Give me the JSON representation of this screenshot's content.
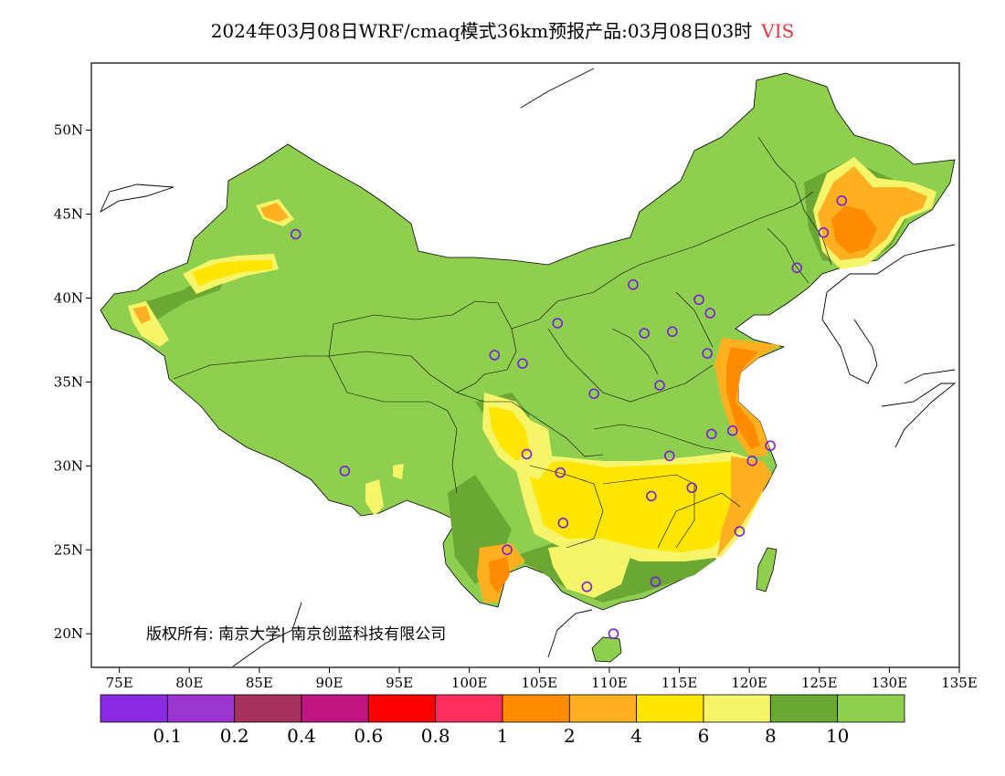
{
  "title": {
    "main": "2024年03月08日WRF/cmaq模式36km预报产品:03月08日03时",
    "variable": "VIS",
    "variable_color": "#e8343c"
  },
  "axes": {
    "lon_min": 73,
    "lon_max": 135,
    "lat_min": 18,
    "lat_max": 54,
    "x_ticks": [
      "75E",
      "80E",
      "85E",
      "90E",
      "95E",
      "100E",
      "105E",
      "110E",
      "115E",
      "120E",
      "125E",
      "130E",
      "135E"
    ],
    "x_tick_values": [
      75,
      80,
      85,
      90,
      95,
      100,
      105,
      110,
      115,
      120,
      125,
      130,
      135
    ],
    "y_ticks": [
      "20N",
      "25N",
      "30N",
      "35N",
      "40N",
      "45N",
      "50N"
    ],
    "y_tick_values": [
      20,
      25,
      30,
      35,
      40,
      45,
      50
    ]
  },
  "legend": {
    "colors": [
      "#8a2be2",
      "#9b35d0",
      "#a8305c",
      "#c0157e",
      "#ff0000",
      "#ff2e5c",
      "#ff8c00",
      "#ffb020",
      "#ffe600",
      "#f6f56a",
      "#6aa833",
      "#8fcf4f"
    ],
    "labels": [
      "0.1",
      "0.2",
      "0.4",
      "0.6",
      "0.8",
      "1",
      "2",
      "4",
      "6",
      "8",
      "10"
    ]
  },
  "copyright": "版权所有: 南京大学| 南京创蓝科技有限公司",
  "stations": [
    {
      "lon": 87.6,
      "lat": 43.8
    },
    {
      "lon": 91.1,
      "lat": 29.7
    },
    {
      "lon": 101.8,
      "lat": 36.6
    },
    {
      "lon": 103.8,
      "lat": 36.1
    },
    {
      "lon": 106.3,
      "lat": 38.5
    },
    {
      "lon": 108.9,
      "lat": 34.3
    },
    {
      "lon": 111.7,
      "lat": 40.8
    },
    {
      "lon": 112.5,
      "lat": 37.9
    },
    {
      "lon": 114.5,
      "lat": 38.0
    },
    {
      "lon": 116.4,
      "lat": 39.9
    },
    {
      "lon": 117.2,
      "lat": 39.1
    },
    {
      "lon": 117.0,
      "lat": 36.7
    },
    {
      "lon": 113.6,
      "lat": 34.8
    },
    {
      "lon": 117.3,
      "lat": 31.9
    },
    {
      "lon": 118.8,
      "lat": 32.1
    },
    {
      "lon": 121.5,
      "lat": 31.2
    },
    {
      "lon": 120.2,
      "lat": 30.3
    },
    {
      "lon": 114.3,
      "lat": 30.6
    },
    {
      "lon": 115.9,
      "lat": 28.7
    },
    {
      "lon": 113.0,
      "lat": 28.2
    },
    {
      "lon": 106.5,
      "lat": 29.6
    },
    {
      "lon": 104.1,
      "lat": 30.7
    },
    {
      "lon": 106.7,
      "lat": 26.6
    },
    {
      "lon": 102.7,
      "lat": 25.0
    },
    {
      "lon": 108.4,
      "lat": 22.8
    },
    {
      "lon": 113.3,
      "lat": 23.1
    },
    {
      "lon": 119.3,
      "lat": 26.1
    },
    {
      "lon": 110.3,
      "lat": 20.0
    },
    {
      "lon": 126.6,
      "lat": 45.8
    },
    {
      "lon": 125.3,
      "lat": 43.9
    },
    {
      "lon": 123.4,
      "lat": 41.8
    }
  ]
}
